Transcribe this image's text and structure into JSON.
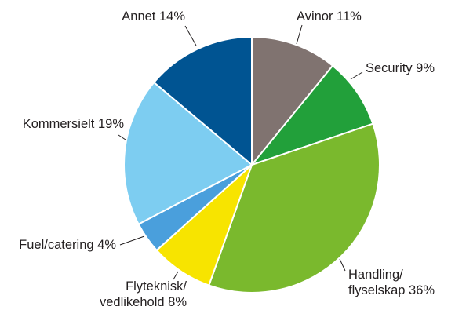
{
  "chart_data": {
    "type": "pie",
    "title": "",
    "legend": "none",
    "start_angle_deg": 0,
    "direction": "clockwise",
    "slices": [
      {
        "label_lines": [
          "Avinor 11%"
        ],
        "value": 11,
        "color": "#807370"
      },
      {
        "label_lines": [
          "Security 9%"
        ],
        "value": 9,
        "color": "#22a03a"
      },
      {
        "label_lines": [
          "Handling/",
          "flyselskap 36%"
        ],
        "value": 36,
        "color": "#7ab92d"
      },
      {
        "label_lines": [
          "Flyteknisk/",
          "vedlikehold 8%"
        ],
        "value": 8,
        "color": "#f7e400"
      },
      {
        "label_lines": [
          "Fuel/catering 4%"
        ],
        "value": 4,
        "color": "#4a9fdc"
      },
      {
        "label_lines": [
          "Kommersielt 19%"
        ],
        "value": 19,
        "color": "#7dcdf1"
      },
      {
        "label_lines": [
          "Annet 14%"
        ],
        "value": 14,
        "color": "#005492"
      }
    ]
  }
}
